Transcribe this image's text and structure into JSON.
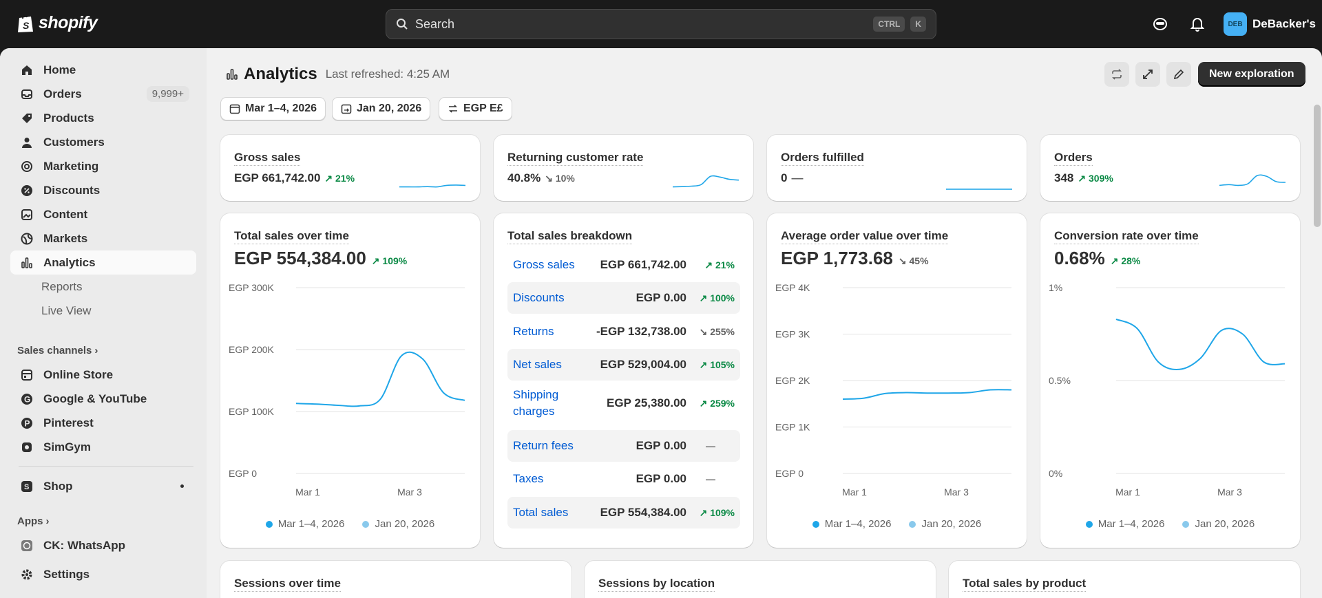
{
  "topbar": {
    "brand": "shopify",
    "search_placeholder": "Search",
    "kbd_ctrl": "CTRL",
    "kbd_k": "K",
    "avatar_initials": "DEB",
    "store_name": "DeBacker's"
  },
  "sidebar": {
    "items": [
      {
        "label": "Home",
        "icon": "home-icon"
      },
      {
        "label": "Orders",
        "icon": "orders-icon",
        "badge": "9,999+"
      },
      {
        "label": "Products",
        "icon": "tag-icon"
      },
      {
        "label": "Customers",
        "icon": "person-icon"
      },
      {
        "label": "Marketing",
        "icon": "target-icon"
      },
      {
        "label": "Discounts",
        "icon": "discount-icon"
      },
      {
        "label": "Content",
        "icon": "content-icon"
      },
      {
        "label": "Markets",
        "icon": "globe-icon"
      },
      {
        "label": "Analytics",
        "icon": "analytics-icon"
      },
      {
        "label": "Reports"
      },
      {
        "label": "Live View"
      }
    ],
    "sales_channels_label": "Sales channels",
    "channels": [
      {
        "label": "Online Store",
        "icon": "store-icon"
      },
      {
        "label": "Google & YouTube",
        "icon": "google-icon"
      },
      {
        "label": "Pinterest",
        "icon": "pinterest-icon"
      },
      {
        "label": "SimGym",
        "icon": "simgym-icon"
      }
    ],
    "shop_label": "Shop",
    "apps_label": "Apps",
    "apps": [
      {
        "label": "CK: WhatsApp",
        "icon": "whatsapp-icon"
      }
    ],
    "settings_label": "Settings"
  },
  "page": {
    "title": "Analytics",
    "last_refreshed": "Last refreshed: 4:25 AM",
    "new_exploration": "New exploration",
    "date_range": "Mar 1–4, 2026",
    "compare_date": "Jan 20, 2026",
    "currency": "EGP E£"
  },
  "kpis": [
    {
      "title": "Gross sales",
      "value": "EGP 661,742.00",
      "change": "21%",
      "dir": "up",
      "spark": [
        0.2,
        0.2,
        0.2,
        0.22,
        0.2,
        0.3,
        0.32,
        0.3
      ]
    },
    {
      "title": "Returning customer rate",
      "value": "40.8%",
      "change": "10%",
      "dir": "down",
      "spark": [
        0.2,
        0.22,
        0.25,
        0.35,
        0.9,
        0.85,
        0.7,
        0.65
      ]
    },
    {
      "title": "Orders fulfilled",
      "value": "0",
      "change": "—",
      "dir": "none",
      "spark": [
        0.05,
        0.05,
        0.05,
        0.05,
        0.05,
        0.05,
        0.05,
        0.05
      ]
    },
    {
      "title": "Orders",
      "value": "348",
      "change": "309%",
      "dir": "up",
      "spark": [
        0.3,
        0.35,
        0.3,
        0.4,
        0.95,
        0.9,
        0.55,
        0.5
      ]
    }
  ],
  "legend": {
    "current": "Mar 1–4, 2026",
    "previous": "Jan 20, 2026"
  },
  "colors": {
    "current": "#1fa6e8",
    "previous": "#89c9ec",
    "accent_up": "#0c8a46",
    "link": "#005bd3"
  },
  "total_sales": {
    "title": "Total sales over time",
    "value": "EGP 554,384.00",
    "change": "109%",
    "chart_data": {
      "type": "line",
      "yticks": [
        "EGP 300K",
        "EGP 200K",
        "EGP 100K",
        "EGP 0"
      ],
      "ylim": [
        0,
        300000
      ],
      "xticks": [
        "Mar 1",
        "Mar 3"
      ],
      "series": [
        {
          "name": "Mar 1–4, 2026",
          "values": [
            113000,
            112000,
            110000,
            109000,
            120000,
            190000,
            185000,
            130000,
            118000
          ]
        }
      ]
    }
  },
  "breakdown": {
    "title": "Total sales breakdown",
    "rows": [
      {
        "label": "Gross sales",
        "value": "EGP 661,742.00",
        "change": "21%",
        "dir": "up"
      },
      {
        "label": "Discounts",
        "value": "EGP 0.00",
        "change": "100%",
        "dir": "up"
      },
      {
        "label": "Returns",
        "value": "-EGP 132,738.00",
        "change": "255%",
        "dir": "down"
      },
      {
        "label": "Net sales",
        "value": "EGP 529,004.00",
        "change": "105%",
        "dir": "up"
      },
      {
        "label": "Shipping charges",
        "value": "EGP 25,380.00",
        "change": "259%",
        "dir": "up"
      },
      {
        "label": "Return fees",
        "value": "EGP 0.00",
        "change": "—",
        "dir": "none"
      },
      {
        "label": "Taxes",
        "value": "EGP 0.00",
        "change": "—",
        "dir": "none"
      },
      {
        "label": "Total sales",
        "value": "EGP 554,384.00",
        "change": "109%",
        "dir": "up"
      }
    ]
  },
  "aov": {
    "title": "Average order value over time",
    "value": "EGP 1,773.68",
    "change": "45%",
    "chart_data": {
      "type": "line",
      "yticks": [
        "EGP 4K",
        "EGP 3K",
        "EGP 2K",
        "EGP 1K",
        "EGP 0"
      ],
      "ylim": [
        0,
        4000
      ],
      "xticks": [
        "Mar 1",
        "Mar 3"
      ],
      "series": [
        {
          "name": "Mar 1–4, 2026",
          "values": [
            1600,
            1620,
            1720,
            1740,
            1730,
            1730,
            1740,
            1800,
            1800
          ]
        }
      ]
    }
  },
  "conversion": {
    "title": "Conversion rate over time",
    "value": "0.68%",
    "change": "28%",
    "chart_data": {
      "type": "line",
      "yticks": [
        "1%",
        "0.5%",
        "0%"
      ],
      "ylim": [
        0,
        1
      ],
      "xticks": [
        "Mar 1",
        "Mar 3"
      ],
      "series": [
        {
          "name": "Mar 1–4, 2026",
          "values": [
            0.83,
            0.78,
            0.6,
            0.56,
            0.62,
            0.77,
            0.75,
            0.6,
            0.59
          ]
        }
      ]
    }
  },
  "bottom_cards": [
    "Sessions over time",
    "Sessions by location",
    "Total sales by product"
  ]
}
